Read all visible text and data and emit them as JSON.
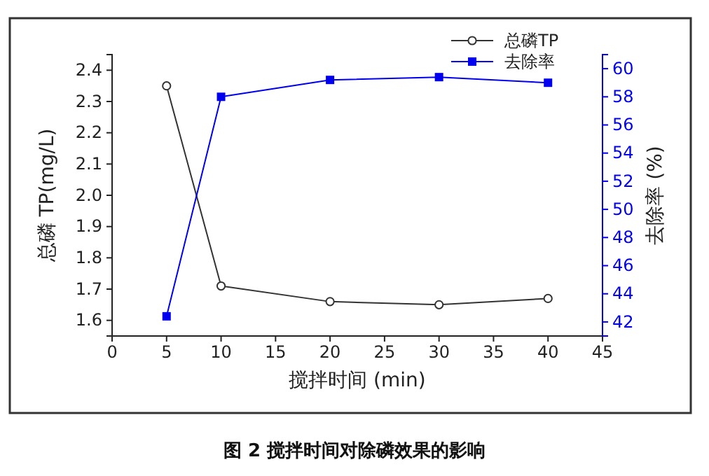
{
  "chart_data": {
    "type": "line",
    "xlabel": "搅拌时间 (min)",
    "ylabel": "总磷 TP(mg/L)",
    "y2label": "去除率 (%)",
    "x": [
      5,
      10,
      20,
      30,
      40
    ],
    "series": [
      {
        "name": "总磷TP",
        "color": "#333333",
        "values": [
          2.35,
          1.71,
          1.66,
          1.65,
          1.67
        ],
        "marker": "circle"
      },
      {
        "name": "去除率",
        "color": "#0000ee",
        "values": [
          42.4,
          58.0,
          59.2,
          59.4,
          59.0
        ],
        "marker": "square",
        "axis": "y2"
      }
    ],
    "xlim": [
      0,
      45
    ],
    "xticks": [
      0,
      5,
      10,
      15,
      20,
      25,
      30,
      35,
      40,
      45
    ],
    "ylim": [
      1.55,
      2.45
    ],
    "yticks": [
      1.6,
      1.7,
      1.8,
      1.9,
      {
        "value": 2.0,
        "label": "2.0"
      },
      2.1,
      2.2,
      2.3,
      2.4
    ],
    "y2lim": [
      41,
      61
    ],
    "y2ticks": [
      42,
      44,
      46,
      48,
      50,
      52,
      54,
      56,
      58,
      60
    ],
    "legend": "top right",
    "grid": false,
    "annotations": [
      "图 2   搅拌时间对除磷效果的影响"
    ]
  }
}
